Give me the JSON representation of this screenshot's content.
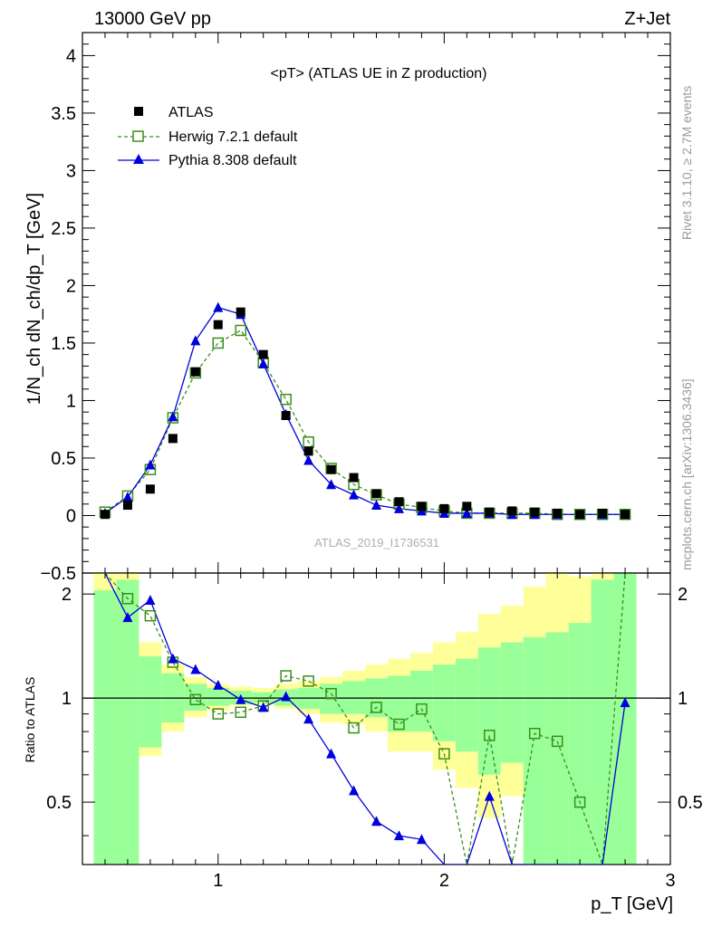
{
  "header": {
    "left": "13000 GeV pp",
    "right": "Z+Jet"
  },
  "side_labels": {
    "rivet": "Rivet 3.1.10, ≥ 2.7M events",
    "mcplots": "mcplots.cern.ch [arXiv:1306.3436]"
  },
  "colors": {
    "data": "#000000",
    "herwig": "#3a8f1a",
    "pythia": "#0000dd",
    "band_inner": "#99ff99",
    "band_outer": "#ffff99"
  },
  "chart_data": [
    {
      "type": "scatter",
      "title": "<pT> (ATLAS UE in Z production)",
      "analysis": "ATLAS_2019_I1736531",
      "xlabel": "p_T [GeV]",
      "ylabel": "1/N_ch dN_ch/dp_T [GeV]",
      "xlim": [
        0.4,
        3.0
      ],
      "ylim": [
        -0.5,
        4.2
      ],
      "yticks": [
        -0.5,
        0,
        0.5,
        1,
        1.5,
        2,
        2.5,
        3,
        3.5,
        4
      ],
      "ytick_labels": [
        "−0.5",
        "0",
        "0.5",
        "1",
        "1.5",
        "2",
        "2.5",
        "3",
        "3.5",
        "4"
      ],
      "legend_position": "top-left",
      "series": [
        {
          "name": "ATLAS",
          "marker": "filled-square",
          "x": [
            0.5,
            0.6,
            0.7,
            0.8,
            0.9,
            1.0,
            1.1,
            1.2,
            1.3,
            1.4,
            1.5,
            1.6,
            1.7,
            1.8,
            1.9,
            2.0,
            2.1,
            2.2,
            2.3,
            2.4,
            2.5,
            2.6,
            2.7,
            2.8
          ],
          "y": [
            0.01,
            0.09,
            0.23,
            0.67,
            1.25,
            1.66,
            1.77,
            1.4,
            0.87,
            0.56,
            0.4,
            0.33,
            0.19,
            0.12,
            0.08,
            0.06,
            0.08,
            0.03,
            0.04,
            0.03,
            0.02,
            0.01,
            0.02,
            0.01
          ]
        },
        {
          "name": "Herwig 7.2.1 default",
          "marker": "open-square",
          "line": "dashed",
          "x": [
            0.5,
            0.6,
            0.7,
            0.8,
            0.9,
            1.0,
            1.1,
            1.2,
            1.3,
            1.4,
            1.5,
            1.6,
            1.7,
            1.8,
            1.9,
            2.0,
            2.1,
            2.2,
            2.3,
            2.4,
            2.5,
            2.6,
            2.7,
            2.8
          ],
          "y": [
            0.03,
            0.17,
            0.4,
            0.85,
            1.24,
            1.5,
            1.61,
            1.33,
            1.01,
            0.64,
            0.41,
            0.27,
            0.18,
            0.1,
            0.07,
            0.04,
            0.02,
            0.02,
            0.02,
            0.02,
            0.01,
            0.01,
            0.01,
            0.01
          ]
        },
        {
          "name": "Pythia 8.308 default",
          "marker": "filled-triangle",
          "line": "solid",
          "x": [
            0.5,
            0.6,
            0.7,
            0.8,
            0.9,
            1.0,
            1.1,
            1.2,
            1.3,
            1.4,
            1.5,
            1.6,
            1.7,
            1.8,
            1.9,
            2.0,
            2.1,
            2.2,
            2.3,
            2.4,
            2.5,
            2.6,
            2.7,
            2.8
          ],
          "y": [
            0.02,
            0.16,
            0.44,
            0.86,
            1.52,
            1.81,
            1.75,
            1.32,
            0.88,
            0.48,
            0.27,
            0.18,
            0.09,
            0.06,
            0.04,
            0.02,
            0.02,
            0.02,
            0.01,
            0.01,
            0.01,
            0.01,
            0.01,
            0.01
          ]
        }
      ]
    },
    {
      "type": "line",
      "ylabel": "Ratio to ATLAS",
      "xlim": [
        0.4,
        3.0
      ],
      "ylim": [
        0.33,
        2.3
      ],
      "yscale": "log",
      "yticks": [
        0.5,
        1,
        2
      ],
      "ytick_labels": [
        "0.5",
        "1",
        "2"
      ],
      "xticks": [
        1,
        2,
        3
      ],
      "xtick_labels": [
        "1",
        "2",
        "3"
      ],
      "reference_line": 1,
      "bands": {
        "edges": [
          0.45,
          0.55,
          0.65,
          0.75,
          0.85,
          0.95,
          1.05,
          1.15,
          1.25,
          1.35,
          1.45,
          1.55,
          1.65,
          1.75,
          1.85,
          1.95,
          2.05,
          2.15,
          2.25,
          2.35,
          2.45,
          2.55,
          2.65,
          2.75,
          2.85
        ],
        "inner_lo": [
          0.3,
          0.3,
          0.72,
          0.85,
          0.92,
          0.95,
          0.96,
          0.97,
          0.95,
          0.93,
          0.9,
          0.9,
          0.88,
          0.8,
          0.8,
          0.75,
          0.7,
          0.6,
          0.65,
          0.3,
          0.3,
          0.3,
          0.3,
          0.3
        ],
        "inner_hi": [
          2.05,
          2.2,
          1.32,
          1.18,
          1.1,
          1.07,
          1.05,
          1.04,
          1.06,
          1.07,
          1.1,
          1.12,
          1.14,
          1.16,
          1.2,
          1.25,
          1.3,
          1.4,
          1.45,
          1.5,
          1.55,
          1.65,
          2.2,
          2.3
        ],
        "outer_lo": [
          0.3,
          0.3,
          0.68,
          0.8,
          0.88,
          0.92,
          0.95,
          0.96,
          0.93,
          0.9,
          0.85,
          0.84,
          0.8,
          0.7,
          0.7,
          0.62,
          0.55,
          0.45,
          0.52,
          0.3,
          0.3,
          0.3,
          0.3,
          0.3
        ],
        "outer_hi": [
          2.4,
          2.4,
          1.45,
          1.25,
          1.15,
          1.1,
          1.08,
          1.07,
          1.1,
          1.12,
          1.15,
          1.2,
          1.25,
          1.3,
          1.35,
          1.45,
          1.55,
          1.75,
          1.85,
          2.1,
          2.4,
          2.25,
          2.4,
          2.4
        ]
      },
      "series": [
        {
          "name": "Herwig 7.2.1 default",
          "x": [
            0.5,
            0.6,
            0.7,
            0.8,
            0.9,
            1.0,
            1.1,
            1.2,
            1.3,
            1.4,
            1.5,
            1.6,
            1.7,
            1.8,
            1.9,
            2.0,
            2.1,
            2.2,
            2.3,
            2.4,
            2.5,
            2.6,
            2.7,
            2.8
          ],
          "y": [
            3.0,
            1.94,
            1.73,
            1.27,
            0.99,
            0.9,
            0.91,
            0.95,
            1.16,
            1.12,
            1.03,
            0.82,
            0.94,
            0.84,
            0.93,
            0.69,
            0.3,
            0.78,
            0.3,
            0.79,
            0.75,
            0.5,
            0.3,
            3.0
          ]
        },
        {
          "name": "Pythia 8.308 default",
          "x": [
            0.5,
            0.6,
            0.7,
            0.8,
            0.9,
            1.0,
            1.1,
            1.2,
            1.3,
            1.4,
            1.5,
            1.6,
            1.7,
            1.8,
            1.9,
            2.0,
            2.1,
            2.2,
            2.3,
            2.4,
            2.5,
            2.6,
            2.7,
            2.8
          ],
          "y": [
            3.0,
            1.71,
            1.92,
            1.3,
            1.21,
            1.09,
            0.99,
            0.94,
            1.01,
            0.87,
            0.69,
            0.54,
            0.44,
            0.4,
            0.39,
            0.3,
            0.3,
            0.52,
            0.3,
            0.3,
            0.3,
            0.3,
            0.3,
            0.97
          ]
        }
      ]
    }
  ]
}
